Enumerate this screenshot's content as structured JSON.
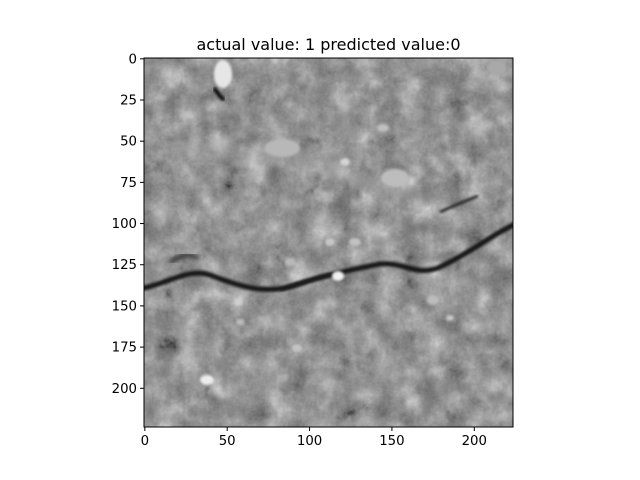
{
  "chart_data": {
    "type": "heatmap",
    "title": "actual value: 1 predicted value:0",
    "xlabel": "",
    "ylabel": "",
    "x_ticks": [
      0,
      50,
      100,
      150,
      200
    ],
    "y_ticks": [
      0,
      25,
      50,
      75,
      100,
      125,
      150,
      175,
      200
    ],
    "xlim": [
      -0.5,
      223.5
    ],
    "ylim": [
      223.5,
      -0.5
    ],
    "image_size": [
      224,
      224
    ],
    "colormap": "gray",
    "grid": false,
    "content_description": "grayscale concrete surface texture with a dark horizontal crack running from left to right"
  }
}
